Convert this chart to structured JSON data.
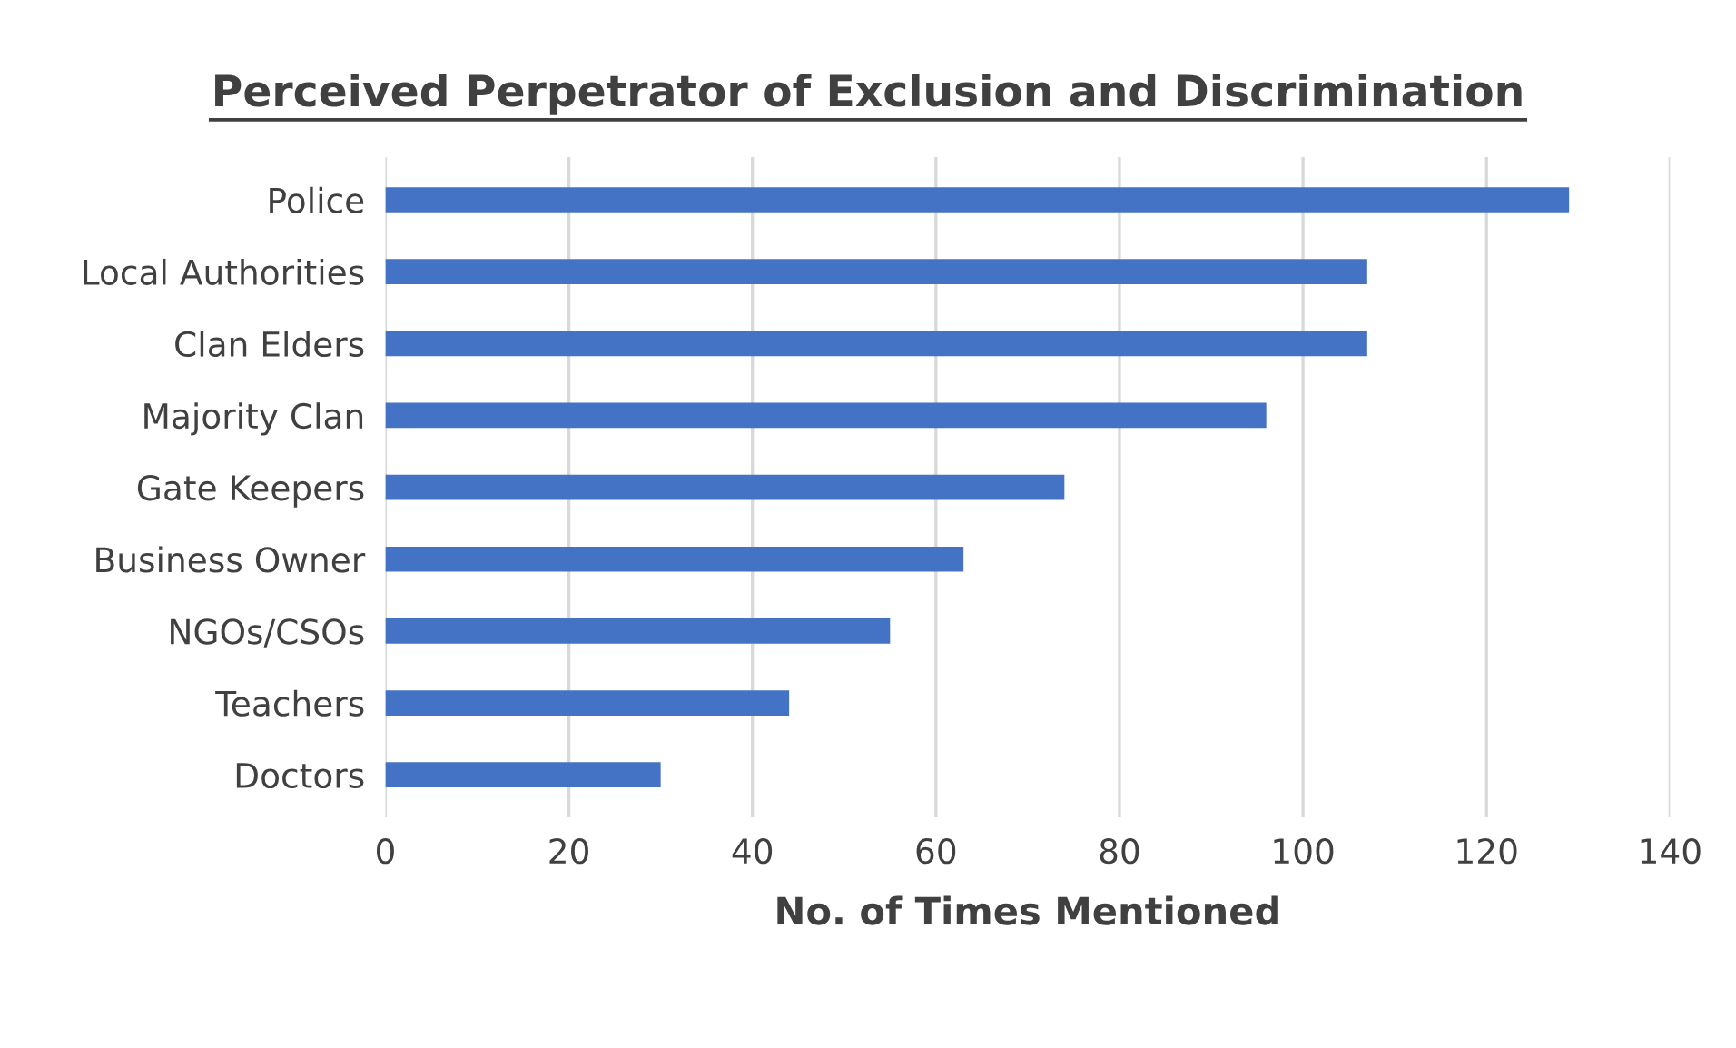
{
  "chart_data": {
    "type": "bar",
    "orientation": "horizontal",
    "title": "Perceived Perpetrator of Exclusion and Discrimination",
    "xlabel": "No. of Times Mentioned",
    "categories": [
      "Police",
      "Local Authorities",
      "Clan Elders",
      "Majority Clan",
      "Gate Keepers",
      "Business Owner",
      "NGOs/CSOs",
      "Teachers",
      "Doctors"
    ],
    "values": [
      129,
      107,
      107,
      96,
      74,
      63,
      55,
      44,
      30
    ],
    "color": "#4472c4",
    "xlim": [
      0,
      140
    ],
    "xticks": [
      0,
      20,
      40,
      60,
      80,
      100,
      120,
      140
    ],
    "grid": "x"
  }
}
